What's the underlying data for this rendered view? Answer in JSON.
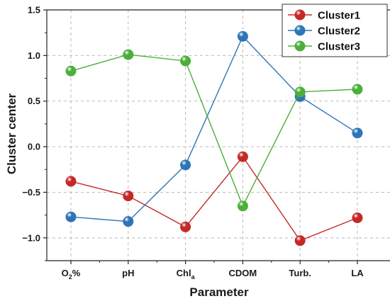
{
  "chart_data": {
    "type": "line",
    "xlabel": "Parameter",
    "ylabel": "Cluster center",
    "categories": [
      {
        "main": "O",
        "sub": "2",
        "tail": "%"
      },
      {
        "main": "pH",
        "sub": "",
        "tail": ""
      },
      {
        "main": "Chl",
        "sub": "a",
        "tail": ""
      },
      {
        "main": "CDOM",
        "sub": "",
        "tail": ""
      },
      {
        "main": "Turb.",
        "sub": "",
        "tail": ""
      },
      {
        "main": "LA",
        "sub": "",
        "tail": ""
      }
    ],
    "ylim": [
      -1.25,
      1.5
    ],
    "yticks": [
      -1.0,
      -0.5,
      0.0,
      0.5,
      1.0,
      1.5
    ],
    "ytick_labels": [
      "−1.0",
      "−0.5",
      "0.0",
      "0.5",
      "1.0",
      "1.5"
    ],
    "grid": true,
    "legend_position": "top-right",
    "series": [
      {
        "name": "Cluster1",
        "color": "#c62828",
        "values": [
          -0.38,
          -0.54,
          -0.88,
          -0.11,
          -1.03,
          -0.78
        ]
      },
      {
        "name": "Cluster2",
        "color": "#2e75b6",
        "values": [
          -0.77,
          -0.82,
          -0.2,
          1.21,
          0.55,
          0.15
        ]
      },
      {
        "name": "Cluster3",
        "color": "#4caf3a",
        "values": [
          0.83,
          1.01,
          0.94,
          -0.65,
          0.6,
          0.63
        ]
      }
    ]
  }
}
